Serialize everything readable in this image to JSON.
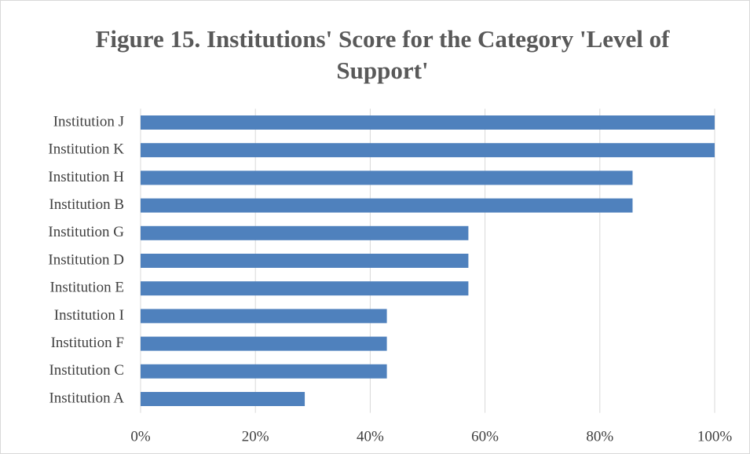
{
  "chart_data": {
    "type": "bar",
    "orientation": "horizontal",
    "title": "Figure 15. Institutions' Score for the Category 'Level of Support'",
    "categories": [
      "Institution J",
      "Institution K",
      "Institution H",
      "Institution B",
      "Institution G",
      "Institution D",
      "Institution E",
      "Institution I",
      "Institution F",
      "Institution C",
      "Institution A"
    ],
    "values": [
      100,
      100,
      85.7,
      85.7,
      57.1,
      57.1,
      57.1,
      42.9,
      42.9,
      42.9,
      28.6
    ],
    "color": "#4f81bd",
    "xlim": [
      0,
      100
    ],
    "xticks": [
      {
        "value": 0,
        "label": "0%"
      },
      {
        "value": 20,
        "label": "20%"
      },
      {
        "value": 40,
        "label": "40%"
      },
      {
        "value": 60,
        "label": "60%"
      },
      {
        "value": 80,
        "label": "80%"
      },
      {
        "value": 100,
        "label": "100%"
      }
    ],
    "grid": true
  }
}
